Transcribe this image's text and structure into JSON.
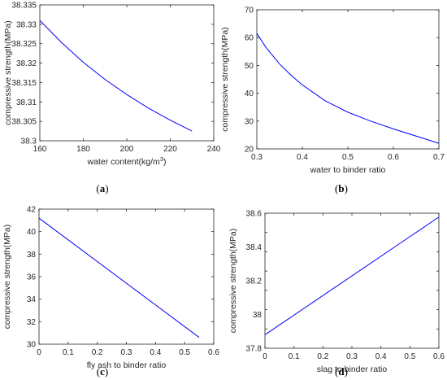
{
  "colors": {
    "line": "#0000ff",
    "axis": "#262626",
    "background": "#ffffff"
  },
  "chart_data": [
    {
      "type": "line",
      "panel_label": "a",
      "xlabel": "water content(kg/m",
      "xlabel_sup": "3",
      "xlabel_end": ")",
      "ylabel": "compressive strength(MPa)",
      "xlim": [
        160,
        240
      ],
      "ylim": [
        38.3,
        38.335
      ],
      "xticks": [
        160,
        180,
        200,
        220,
        240
      ],
      "yticks": [
        38.3,
        38.305,
        38.31,
        38.315,
        38.32,
        38.325,
        38.33,
        38.335
      ],
      "xtick_labels": [
        "160",
        "180",
        "200",
        "220",
        "240"
      ],
      "ytick_labels": [
        "38.3",
        "38.305",
        "38.31",
        "38.315",
        "38.32",
        "38.325",
        "38.33",
        "38.335"
      ],
      "grid": false,
      "series": [
        {
          "x": [
            160,
            170,
            180,
            190,
            200,
            210,
            220,
            230
          ],
          "y": [
            38.331,
            38.3253,
            38.3202,
            38.3158,
            38.3119,
            38.3084,
            38.3053,
            38.3025
          ]
        }
      ]
    },
    {
      "type": "line",
      "panel_label": "b",
      "xlabel": "water to binder ratio",
      "ylabel": "compressive strength(MPa)",
      "xlim": [
        0.3,
        0.7
      ],
      "ylim": [
        20,
        70
      ],
      "xticks": [
        0.3,
        0.4,
        0.5,
        0.6,
        0.7
      ],
      "yticks": [
        20,
        30,
        40,
        50,
        60,
        70
      ],
      "xtick_labels": [
        "0.3",
        "0.4",
        "0.5",
        "0.6",
        "0.7"
      ],
      "ytick_labels": [
        "20",
        "30",
        "40",
        "50",
        "60",
        "70"
      ],
      "grid": false,
      "series": [
        {
          "x": [
            0.3,
            0.32,
            0.35,
            0.375,
            0.4,
            0.45,
            0.5,
            0.55,
            0.6,
            0.65,
            0.7
          ],
          "y": [
            61.5,
            56.5,
            50.5,
            46.5,
            43.0,
            37.3,
            33.2,
            30.0,
            27.2,
            24.6,
            22.0
          ]
        }
      ]
    },
    {
      "type": "line",
      "panel_label": "c",
      "xlabel": "fly ash to binder ratio",
      "ylabel": "compressive strength(MPa)",
      "xlim": [
        0,
        0.6
      ],
      "ylim": [
        30,
        42
      ],
      "xticks": [
        0,
        0.1,
        0.2,
        0.3,
        0.4,
        0.5,
        0.6
      ],
      "yticks": [
        30,
        32,
        34,
        36,
        38,
        40,
        42
      ],
      "xtick_labels": [
        "0",
        "0.1",
        "0.2",
        "0.3",
        "0.4",
        "0.5",
        "0.6"
      ],
      "ytick_labels": [
        "30",
        "32",
        "34",
        "36",
        "38",
        "40",
        "42"
      ],
      "grid": false,
      "series": [
        {
          "x": [
            0,
            0.55
          ],
          "y": [
            41.2,
            30.6
          ]
        }
      ]
    },
    {
      "type": "line",
      "panel_label": "d",
      "xlabel": "slag to binder ratio",
      "ylabel": "compressive strength(MPa)",
      "xlim": [
        0,
        0.6
      ],
      "ylim": [
        37.8,
        38.5
      ],
      "xticks": [
        0,
        0.1,
        0.2,
        0.3,
        0.4,
        0.5,
        0.6
      ],
      "yticks": [
        37.8,
        37.9,
        38.0,
        38.1,
        38.2,
        38.3,
        38.4,
        38.5
      ],
      "xtick_labels": [
        "0",
        "0.1",
        "0.2",
        "0.3",
        "0.4",
        "0.5",
        "0.6"
      ],
      "ytick_labels": [
        "37.8",
        "38",
        "38.2",
        "38.4",
        "38.6"
      ],
      "ytick_label_values": [
        37.8,
        38.0,
        38.2,
        38.4,
        38.6
      ],
      "grid": false,
      "series": [
        {
          "x": [
            0,
            0.6
          ],
          "y": [
            37.87,
            38.48
          ]
        }
      ]
    }
  ]
}
